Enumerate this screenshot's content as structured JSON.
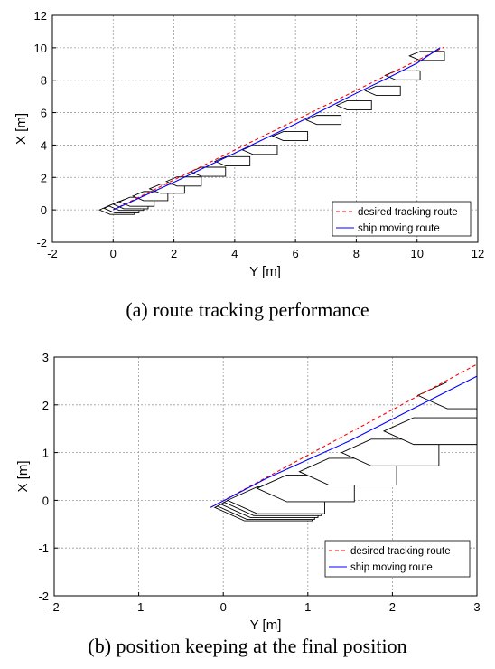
{
  "chart_data": [
    {
      "type": "line",
      "caption": "(a) route tracking performance",
      "xlabel": "Y [m]",
      "ylabel": "X [m]",
      "xlim": [
        -2,
        12
      ],
      "ylim": [
        -2,
        12
      ],
      "xticks": [
        -2,
        0,
        2,
        4,
        6,
        8,
        10,
        12
      ],
      "yticks": [
        -2,
        0,
        2,
        4,
        6,
        8,
        10,
        12
      ],
      "grid": true,
      "legend_position": "bottom-right",
      "series": [
        {
          "name": "desired tracking route",
          "style": "dashed",
          "color": "#ff0000",
          "x": [
            0,
            10.9
          ],
          "y": [
            0,
            10.05
          ]
        },
        {
          "name": "ship moving route",
          "style": "solid",
          "color": "#0000ff",
          "x": [
            0,
            1.0,
            2.0,
            3.0,
            4.0,
            5.0,
            6.0,
            7.0,
            8.0,
            9.0,
            10.0,
            10.75
          ],
          "y": [
            0,
            0.85,
            1.7,
            2.6,
            3.5,
            4.4,
            5.3,
            6.25,
            7.2,
            8.1,
            9.05,
            10.0
          ]
        }
      ],
      "ship_positions": [
        {
          "x": 0.1,
          "y": 0.0
        },
        {
          "x": 0.25,
          "y": 0.1
        },
        {
          "x": 0.4,
          "y": 0.25
        },
        {
          "x": 0.55,
          "y": 0.35
        },
        {
          "x": 0.75,
          "y": 0.5
        },
        {
          "x": 1.2,
          "y": 0.85
        },
        {
          "x": 1.75,
          "y": 1.3
        },
        {
          "x": 2.3,
          "y": 1.75
        },
        {
          "x": 3.1,
          "y": 2.35
        },
        {
          "x": 3.9,
          "y": 3.0
        },
        {
          "x": 4.8,
          "y": 3.7
        },
        {
          "x": 5.8,
          "y": 4.55
        },
        {
          "x": 6.9,
          "y": 5.55
        },
        {
          "x": 7.9,
          "y": 6.45
        },
        {
          "x": 8.85,
          "y": 7.35
        },
        {
          "x": 9.5,
          "y": 8.3
        },
        {
          "x": 10.3,
          "y": 9.5
        }
      ]
    },
    {
      "type": "line",
      "caption": "(b) position keeping at the final position",
      "xlabel": "Y [m]",
      "ylabel": "X [m]",
      "xlim": [
        -2,
        3
      ],
      "ylim": [
        -2,
        3
      ],
      "xticks": [
        -2,
        -1,
        0,
        1,
        2,
        3
      ],
      "yticks": [
        -2,
        -1,
        0,
        1,
        2,
        3
      ],
      "grid": true,
      "legend_position": "bottom-right",
      "series": [
        {
          "name": "desired tracking route",
          "style": "dashed",
          "color": "#ff0000",
          "x": [
            -0.15,
            3.0
          ],
          "y": [
            -0.15,
            2.85
          ]
        },
        {
          "name": "ship moving route",
          "style": "solid",
          "color": "#0000ff",
          "x": [
            -0.15,
            0.5,
            1.0,
            1.5,
            2.0,
            2.5,
            3.0
          ],
          "y": [
            -0.15,
            0.45,
            0.85,
            1.25,
            1.7,
            2.15,
            2.6
          ]
        }
      ],
      "ship_positions": [
        {
          "x": 0.45,
          "y": -0.15
        },
        {
          "x": 0.48,
          "y": -0.12
        },
        {
          "x": 0.52,
          "y": -0.08
        },
        {
          "x": 0.56,
          "y": -0.04
        },
        {
          "x": 0.6,
          "y": 0.0
        },
        {
          "x": 0.95,
          "y": 0.25
        },
        {
          "x": 1.45,
          "y": 0.6
        },
        {
          "x": 1.95,
          "y": 1.0
        },
        {
          "x": 2.45,
          "y": 1.45
        },
        {
          "x": 2.85,
          "y": 2.2
        }
      ]
    }
  ]
}
